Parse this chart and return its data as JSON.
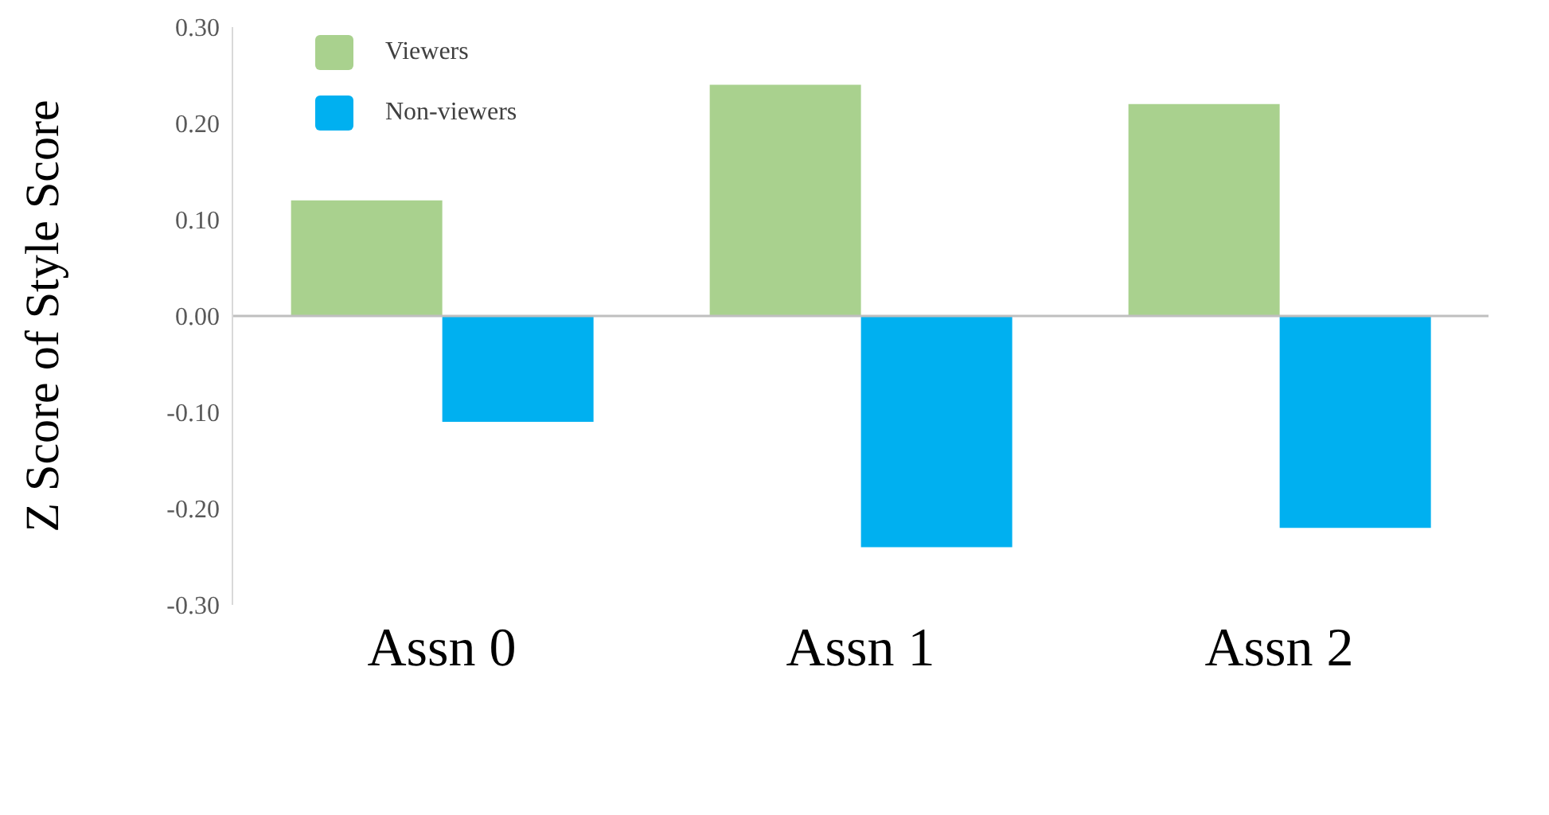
{
  "chart_data": {
    "type": "bar",
    "ylabel": "Z Score of Style Score",
    "categories": [
      "Assn 0",
      "Assn 1",
      "Assn 2"
    ],
    "series": [
      {
        "name": "Viewers",
        "color": "#a9d18e",
        "values": [
          0.12,
          0.24,
          0.22
        ]
      },
      {
        "name": "Non-viewers",
        "color": "#00b0f0",
        "values": [
          -0.11,
          -0.24,
          -0.22
        ]
      }
    ],
    "ylim": [
      -0.3,
      0.3
    ],
    "yticks": [
      {
        "value": -0.3,
        "label": "-0.30"
      },
      {
        "value": -0.2,
        "label": "-0.20"
      },
      {
        "value": -0.1,
        "label": "-0.10"
      },
      {
        "value": 0,
        "label": "0.00"
      },
      {
        "value": 0.1,
        "label": "0.10"
      },
      {
        "value": 0.2,
        "label": "0.20"
      },
      {
        "value": 0.3,
        "label": "0.30"
      }
    ],
    "ref_lines": [
      {
        "axis": "y",
        "value": 0,
        "color": "#bfbfbf"
      }
    ],
    "legend": "top left"
  }
}
